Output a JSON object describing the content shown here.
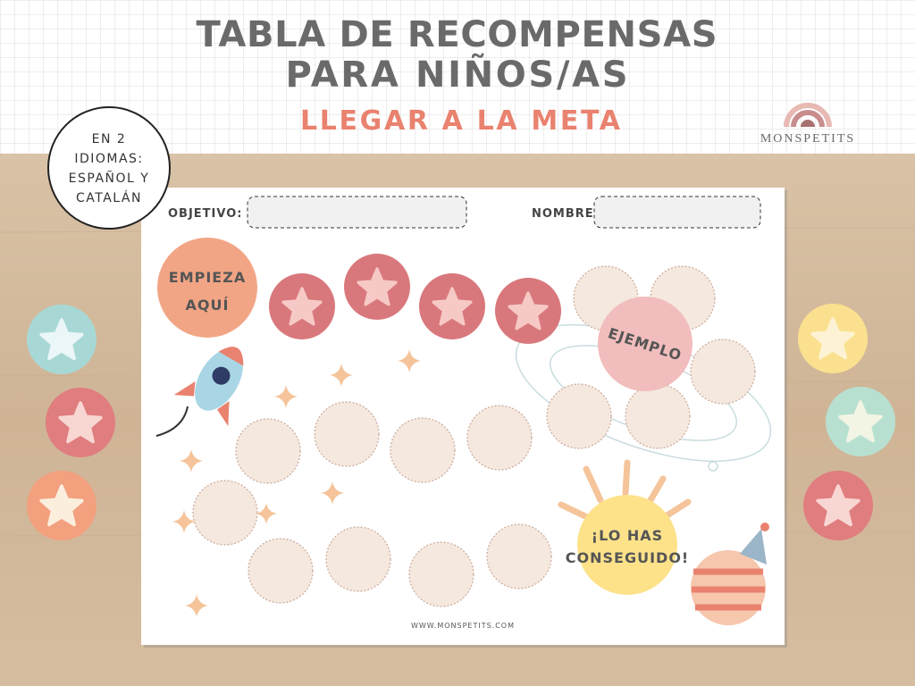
{
  "header": {
    "title_lines": [
      "TABLA DE RECOMPENSAS",
      "PARA NIÑOS/AS"
    ],
    "subtitle": "LLEGAR A LA META",
    "brand": "MONSPETITS"
  },
  "badge": {
    "lines": [
      "EN 2",
      "IDIOMAS:",
      "ESPAÑOL Y",
      "CATALÁN"
    ]
  },
  "sheet": {
    "fields": [
      "OBJETIVO:",
      "NOMBRE:"
    ],
    "start": [
      "EMPIEZA",
      "AQUÍ"
    ],
    "example": "EJEMPLO",
    "goal": [
      "¡LO HAS",
      "CONSEGUIDO!"
    ],
    "website": "WWW.MONSPETITS.COM"
  }
}
